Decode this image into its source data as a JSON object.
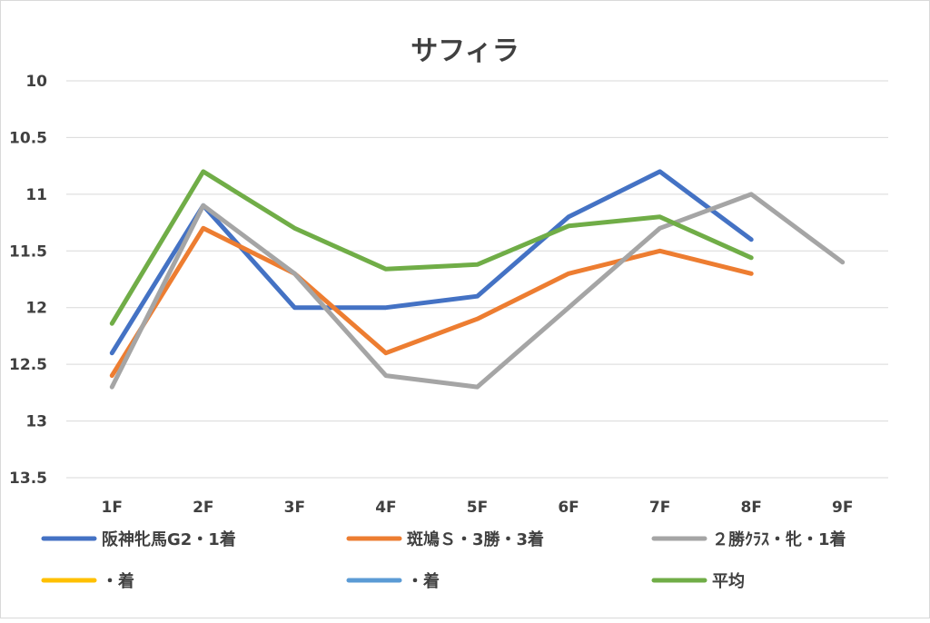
{
  "chart_data": {
    "type": "line",
    "title": "サフィラ",
    "categories": [
      "1F",
      "2F",
      "3F",
      "4F",
      "5F",
      "6F",
      "7F",
      "8F",
      "9F"
    ],
    "y_axis": {
      "min": 10,
      "max": 13.5,
      "reversed": true,
      "ticks": [
        "10",
        "10.5",
        "11",
        "11.5",
        "12",
        "12.5",
        "13",
        "13.5"
      ],
      "tick_values": [
        10,
        10.5,
        11,
        11.5,
        12,
        12.5,
        13,
        13.5
      ]
    },
    "grid": true,
    "legend_position": "bottom",
    "series": [
      {
        "name": "阪神牝馬G2・1着",
        "color": "#4472C4",
        "values": [
          12.4,
          11.1,
          12.0,
          12.0,
          11.9,
          11.2,
          10.8,
          11.4,
          null
        ]
      },
      {
        "name": "斑鳩Ｓ・3勝・3着",
        "color": "#ED7D31",
        "values": [
          12.6,
          11.3,
          11.7,
          12.4,
          12.1,
          11.7,
          11.5,
          11.7,
          null
        ]
      },
      {
        "name": "２勝ｸﾗｽ・牝・1着",
        "color": "#A5A5A5",
        "values": [
          12.7,
          11.1,
          11.7,
          12.6,
          12.7,
          12.0,
          11.3,
          11.0,
          11.6
        ]
      },
      {
        "name": "・着",
        "color": "#FFC000",
        "values": [
          null,
          null,
          null,
          null,
          null,
          null,
          null,
          null,
          null
        ]
      },
      {
        "name": "・着",
        "color": "#5B9BD5",
        "values": [
          null,
          null,
          null,
          null,
          null,
          null,
          null,
          null,
          null
        ]
      },
      {
        "name": "平均",
        "color": "#70AD47",
        "values": [
          12.14,
          10.8,
          11.3,
          11.66,
          11.62,
          11.28,
          11.2,
          11.56,
          null
        ]
      }
    ]
  }
}
